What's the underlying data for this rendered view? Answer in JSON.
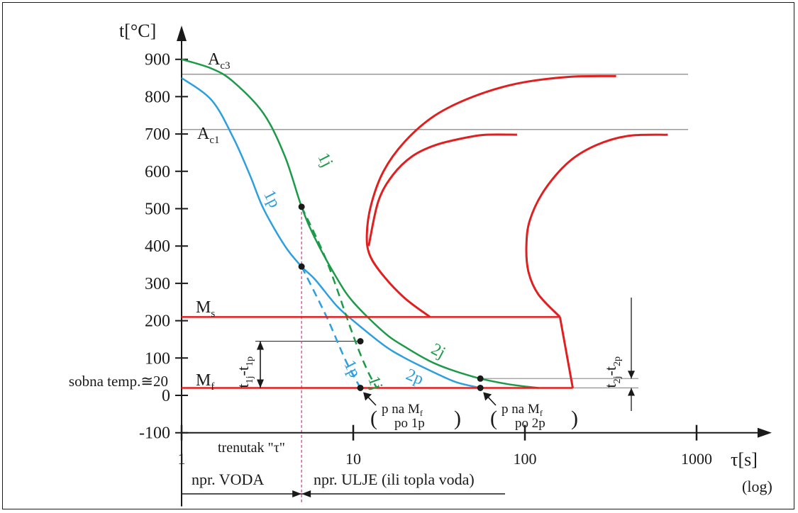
{
  "chart_data": {
    "type": "line",
    "ylabel": "t[°C]",
    "xlabel": "τ[s]",
    "xscale_note": "(log)",
    "xscale": "log",
    "xlim": [
      1,
      1000
    ],
    "ylim": [
      -100,
      900
    ],
    "y_ticks": [
      -100,
      0,
      100,
      200,
      300,
      400,
      500,
      600,
      700,
      800,
      900
    ],
    "x_ticks": [
      1,
      10,
      100,
      1000
    ],
    "levels": {
      "Ac3": {
        "label_main": "A",
        "label_sub": "c3",
        "value": 860
      },
      "Ac1": {
        "label_main": "A",
        "label_sub": "c1",
        "value": 712
      },
      "Ms": {
        "label_main": "M",
        "label_sub": "s",
        "value": 210
      },
      "Mf": {
        "label_main": "M",
        "label_sub": "f",
        "value": 20
      }
    },
    "room_temp_label": "sobna temp.≅20",
    "colors": {
      "green": "#1d9a48",
      "blue": "#2c9fe0",
      "red": "#e02020",
      "gray": "#9a9a9a",
      "pink": "#e33d8f",
      "black": "#1a1a1a"
    },
    "series": [
      {
        "name": "1j",
        "color": "#1d9a48",
        "style": "solid",
        "x": [
          1,
          1.5,
          2,
          3,
          4,
          5,
          6,
          8,
          10,
          15,
          20,
          30,
          50,
          80,
          120
        ],
        "y": [
          900,
          875,
          840,
          755,
          640,
          505,
          420,
          315,
          250,
          170,
          130,
          85,
          50,
          30,
          20
        ]
      },
      {
        "name": "1p",
        "color": "#2c9fe0",
        "style": "solid",
        "x": [
          1,
          1.5,
          2,
          2.5,
          3,
          4,
          5,
          6,
          8,
          10,
          15,
          20,
          30,
          40,
          55
        ],
        "y": [
          850,
          790,
          690,
          590,
          500,
          400,
          345,
          310,
          240,
          200,
          135,
          100,
          60,
          35,
          20
        ]
      },
      {
        "name": "1j",
        "color": "#1d9a48",
        "style": "dashed",
        "x": [
          5,
          7,
          10,
          12,
          13.7
        ],
        "y": [
          505,
          360,
          160,
          70,
          20
        ]
      },
      {
        "name": "1p",
        "color": "#2c9fe0",
        "style": "dashed",
        "x": [
          5,
          7,
          9,
          11
        ],
        "y": [
          345,
          210,
          95,
          20
        ]
      },
      {
        "name": "Mf",
        "color": "#e02020",
        "style": "solid",
        "x": [
          1,
          190
        ],
        "y": [
          20,
          20
        ]
      },
      {
        "name": "Ms",
        "color": "#e02020",
        "style": "solid",
        "x": [
          1,
          160
        ],
        "y": [
          210,
          210
        ]
      }
    ],
    "c_curves": [
      {
        "name": "start",
        "x": [
          28,
          20,
          15,
          12.5,
          12,
          12.7,
          15,
          20,
          30,
          50,
          90,
          180,
          340
        ],
        "y": [
          210,
          260,
          320,
          375,
          430,
          510,
          600,
          680,
          750,
          800,
          835,
          853,
          855
        ]
      },
      {
        "name": "start-branch",
        "x": [
          12.3,
          14,
          17,
          22,
          30,
          45,
          60,
          90
        ],
        "y": [
          400,
          520,
          590,
          640,
          670,
          690,
          698,
          698
        ]
      },
      {
        "name": "end",
        "x": [
          160,
          120,
          105,
          102,
          107,
          130,
          180,
          260,
          400,
          680
        ],
        "y": [
          210,
          270,
          330,
          400,
          470,
          550,
          625,
          670,
          695,
          698
        ]
      },
      {
        "name": "end-drop",
        "x": [
          160,
          190
        ],
        "y": [
          210,
          20
        ]
      }
    ],
    "points": [
      {
        "x": 5,
        "y": 505
      },
      {
        "x": 5,
        "y": 345
      },
      {
        "x": 11,
        "y": 145
      },
      {
        "x": 11,
        "y": 20
      },
      {
        "x": 55,
        "y": 45
      },
      {
        "x": 55,
        "y": 20
      }
    ],
    "curve_labels": [
      {
        "text": "1j",
        "color": "#1d9a48",
        "x": 6.2,
        "y": 640,
        "rot": 63
      },
      {
        "text": "1p",
        "color": "#2c9fe0",
        "x": 3.0,
        "y": 540,
        "rot": 63
      },
      {
        "text": "2j",
        "color": "#1d9a48",
        "x": 28,
        "y": 115,
        "rot": 28
      },
      {
        "text": "2p",
        "color": "#2c9fe0",
        "x": 20,
        "y": 45,
        "rot": 22
      },
      {
        "text": "1p",
        "color": "#2c9fe0",
        "x": 8.8,
        "y": 85,
        "rot": 63
      },
      {
        "text": "1j",
        "color": "#1d9a48",
        "x": 12.2,
        "y": 45,
        "rot": 70
      }
    ],
    "annotations": {
      "diff1_main": "t",
      "diff1_sub1": "1j",
      "diff1_mid": "-t",
      "diff1_sub2": "1p",
      "diff2_main": "t",
      "diff2_sub1": "2j",
      "diff2_mid": "-t",
      "diff2_sub2": "2p",
      "pnote1_line1_main": "p na M",
      "pnote1_line1_sub": "f",
      "pnote1_line2": "po 1p",
      "pnote2_line1_main": "p na M",
      "pnote2_line1_sub": "f",
      "pnote2_line2": "po 2p",
      "moment": "trenutak \"τ\"",
      "water": "npr. VODA",
      "oil": "npr. ULJE (ili topla voda)"
    }
  }
}
